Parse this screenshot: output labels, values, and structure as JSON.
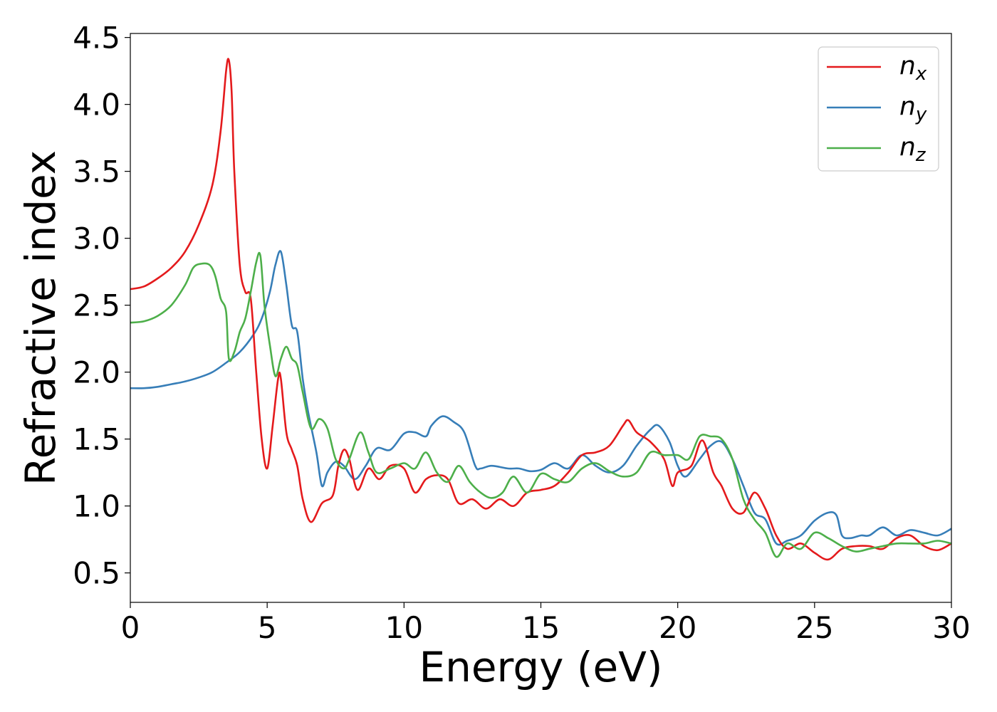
{
  "chart_data": {
    "type": "line",
    "xlabel": "Energy (eV)",
    "ylabel": "Refractive index",
    "xlim": [
      0,
      30
    ],
    "ylim": [
      0.28,
      4.53
    ],
    "xticks": [
      0,
      5,
      10,
      15,
      20,
      25,
      30
    ],
    "xtick_labels": [
      "0",
      "5",
      "10",
      "15",
      "20",
      "25",
      "30"
    ],
    "yticks": [
      0.5,
      1.0,
      1.5,
      2.0,
      2.5,
      3.0,
      3.5,
      4.0,
      4.5
    ],
    "ytick_labels": [
      "0.5",
      "1.0",
      "1.5",
      "2.0",
      "2.5",
      "3.0",
      "3.5",
      "4.0",
      "4.5"
    ],
    "grid": false,
    "legend_position": "top-right",
    "series": [
      {
        "name": "n",
        "subscript": "x",
        "color": "#e41a1c",
        "x": [
          0,
          0.5,
          1.0,
          1.5,
          2.0,
          2.5,
          3.0,
          3.3,
          3.5,
          3.6,
          3.7,
          3.8,
          4.0,
          4.2,
          4.4,
          4.6,
          4.8,
          5.0,
          5.2,
          5.4,
          5.5,
          5.7,
          5.9,
          6.1,
          6.3,
          6.6,
          7.0,
          7.4,
          7.6,
          7.8,
          8.0,
          8.3,
          8.7,
          9.1,
          9.5,
          10.0,
          10.4,
          10.8,
          11.2,
          11.6,
          12.0,
          12.5,
          13.0,
          13.5,
          14.0,
          14.5,
          15.0,
          15.5,
          16.0,
          16.5,
          17.0,
          17.5,
          18.0,
          18.2,
          18.5,
          19.0,
          19.5,
          19.8,
          20.0,
          20.5,
          20.9,
          21.3,
          21.6,
          22.0,
          22.4,
          22.8,
          23.2,
          23.6,
          24.0,
          24.5,
          25.0,
          25.5,
          26.0,
          26.5,
          27.0,
          27.5,
          28.0,
          28.5,
          29.0,
          29.5,
          30.0
        ],
        "values": [
          2.62,
          2.64,
          2.7,
          2.78,
          2.9,
          3.1,
          3.4,
          3.8,
          4.25,
          4.33,
          4.1,
          3.5,
          2.8,
          2.6,
          2.55,
          2.0,
          1.5,
          1.28,
          1.6,
          1.95,
          1.95,
          1.55,
          1.42,
          1.3,
          1.05,
          0.88,
          1.02,
          1.08,
          1.3,
          1.42,
          1.35,
          1.12,
          1.28,
          1.2,
          1.3,
          1.28,
          1.1,
          1.2,
          1.23,
          1.2,
          1.02,
          1.05,
          0.98,
          1.05,
          1.0,
          1.1,
          1.12,
          1.15,
          1.25,
          1.38,
          1.4,
          1.45,
          1.6,
          1.64,
          1.55,
          1.48,
          1.35,
          1.15,
          1.25,
          1.3,
          1.49,
          1.25,
          1.15,
          0.98,
          0.95,
          1.1,
          0.98,
          0.78,
          0.68,
          0.72,
          0.65,
          0.6,
          0.68,
          0.7,
          0.7,
          0.68,
          0.76,
          0.78,
          0.7,
          0.67,
          0.72
        ]
      },
      {
        "name": "n",
        "subscript": "y",
        "color": "#377eb8",
        "x": [
          0,
          0.5,
          1.0,
          1.5,
          2.0,
          2.5,
          3.0,
          3.5,
          4.0,
          4.5,
          4.8,
          5.1,
          5.3,
          5.5,
          5.7,
          5.9,
          6.1,
          6.3,
          6.5,
          6.8,
          7.0,
          7.2,
          7.5,
          7.8,
          8.2,
          8.6,
          9.0,
          9.5,
          10.0,
          10.4,
          10.8,
          11.0,
          11.4,
          11.8,
          12.2,
          12.6,
          12.8,
          13.2,
          13.8,
          14.2,
          14.6,
          15.0,
          15.5,
          16.0,
          16.5,
          17.0,
          17.5,
          18.0,
          18.5,
          19.0,
          19.3,
          19.7,
          20.0,
          20.3,
          20.8,
          21.2,
          21.6,
          22.0,
          22.4,
          22.8,
          23.2,
          23.6,
          24.0,
          24.5,
          25.0,
          25.5,
          25.8,
          26.0,
          26.3,
          26.7,
          27.0,
          27.5,
          28.0,
          28.5,
          29.0,
          29.5,
          30.0
        ],
        "values": [
          1.88,
          1.88,
          1.89,
          1.91,
          1.93,
          1.96,
          2.0,
          2.07,
          2.15,
          2.28,
          2.4,
          2.6,
          2.8,
          2.9,
          2.65,
          2.35,
          2.3,
          1.95,
          1.7,
          1.4,
          1.15,
          1.25,
          1.33,
          1.3,
          1.2,
          1.3,
          1.43,
          1.42,
          1.54,
          1.55,
          1.52,
          1.6,
          1.67,
          1.63,
          1.55,
          1.3,
          1.28,
          1.3,
          1.28,
          1.28,
          1.26,
          1.27,
          1.32,
          1.28,
          1.38,
          1.3,
          1.25,
          1.3,
          1.45,
          1.57,
          1.6,
          1.48,
          1.3,
          1.22,
          1.35,
          1.45,
          1.48,
          1.35,
          1.15,
          0.95,
          0.9,
          0.72,
          0.74,
          0.78,
          0.89,
          0.95,
          0.93,
          0.78,
          0.76,
          0.78,
          0.78,
          0.84,
          0.78,
          0.82,
          0.8,
          0.78,
          0.83
        ]
      },
      {
        "name": "n",
        "subscript": "z",
        "color": "#4daf4a",
        "x": [
          0,
          0.5,
          1.0,
          1.5,
          2.0,
          2.3,
          2.6,
          2.9,
          3.1,
          3.3,
          3.5,
          3.6,
          3.8,
          4.0,
          4.2,
          4.4,
          4.6,
          4.75,
          4.9,
          5.1,
          5.3,
          5.5,
          5.7,
          5.9,
          6.1,
          6.3,
          6.6,
          6.9,
          7.2,
          7.5,
          7.8,
          8.0,
          8.4,
          8.7,
          9.0,
          9.5,
          10.0,
          10.4,
          10.8,
          11.2,
          11.6,
          12.0,
          12.4,
          12.8,
          13.2,
          13.6,
          14.0,
          14.5,
          15.0,
          15.5,
          16.0,
          16.5,
          17.0,
          17.5,
          18.0,
          18.5,
          19.0,
          19.5,
          20.0,
          20.4,
          20.8,
          21.2,
          21.6,
          22.0,
          22.4,
          22.8,
          23.2,
          23.6,
          24.0,
          24.5,
          25.0,
          25.5,
          26.0,
          26.5,
          27.0,
          27.5,
          28.0,
          28.5,
          29.0,
          29.5,
          30.0
        ],
        "values": [
          2.37,
          2.38,
          2.42,
          2.5,
          2.65,
          2.78,
          2.81,
          2.8,
          2.72,
          2.55,
          2.45,
          2.1,
          2.15,
          2.3,
          2.4,
          2.6,
          2.82,
          2.87,
          2.5,
          2.2,
          1.97,
          2.1,
          2.19,
          2.1,
          2.05,
          1.85,
          1.58,
          1.65,
          1.58,
          1.35,
          1.28,
          1.35,
          1.55,
          1.4,
          1.25,
          1.28,
          1.32,
          1.28,
          1.4,
          1.25,
          1.18,
          1.3,
          1.18,
          1.1,
          1.06,
          1.1,
          1.22,
          1.1,
          1.24,
          1.2,
          1.18,
          1.28,
          1.32,
          1.26,
          1.22,
          1.25,
          1.4,
          1.38,
          1.38,
          1.35,
          1.52,
          1.52,
          1.5,
          1.35,
          1.05,
          0.9,
          0.8,
          0.62,
          0.72,
          0.68,
          0.8,
          0.76,
          0.7,
          0.66,
          0.68,
          0.7,
          0.72,
          0.72,
          0.72,
          0.74,
          0.72
        ]
      }
    ]
  }
}
